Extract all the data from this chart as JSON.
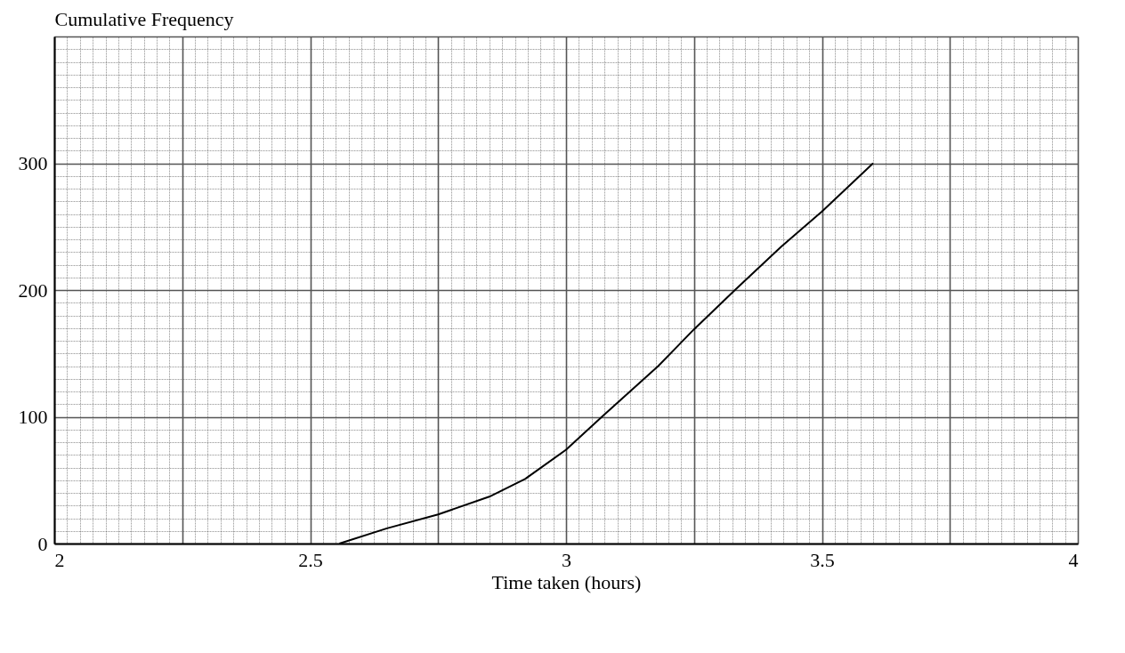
{
  "chart_data": {
    "type": "line",
    "xlabel": "Time taken (hours)",
    "ylabel": "Cumulative Frequency",
    "x": [
      2.557,
      2.65,
      2.75,
      2.85,
      2.92,
      3.0,
      3.07,
      3.18,
      3.25,
      3.33,
      3.42,
      3.5,
      3.6
    ],
    "series": [
      {
        "color": "#000000",
        "values": [
          0,
          12,
          23,
          37,
          51,
          74,
          100,
          140,
          169,
          200,
          234,
          262,
          300
        ]
      }
    ],
    "xlim": [
      2,
      4
    ],
    "ylim": [
      0,
      400
    ],
    "xticks": [
      2,
      2.5,
      3,
      3.5,
      4
    ],
    "yticks": [
      0,
      100,
      200,
      300
    ],
    "grid": true,
    "marker": "none",
    "line_style": "solid"
  }
}
